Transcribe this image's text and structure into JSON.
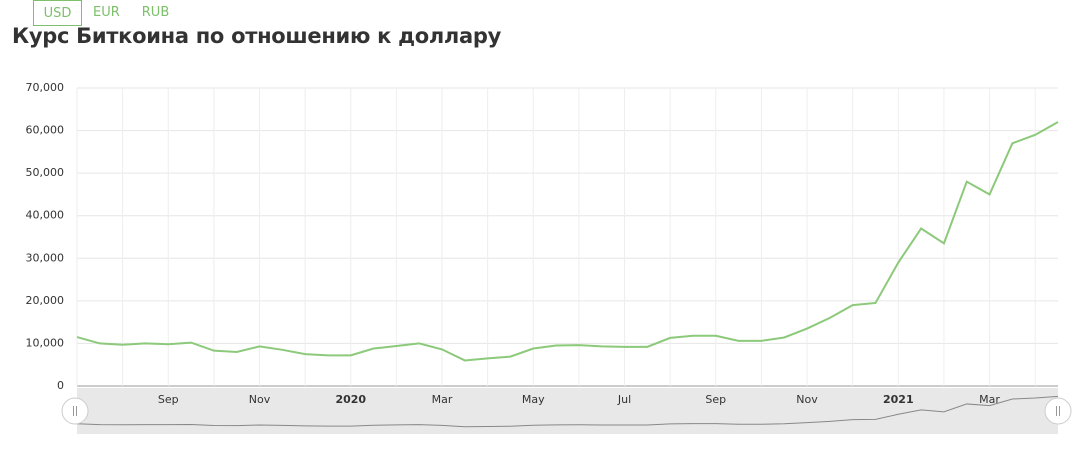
{
  "currency_tabs": [
    "USD",
    "EUR",
    "RUB"
  ],
  "chart_data": {
    "type": "line",
    "title": "Курс Биткоина по отношению к доллару",
    "categories": [
      null,
      null,
      null,
      null,
      "Sep",
      null,
      null,
      null,
      "Nov",
      null,
      null,
      null,
      "2020",
      null,
      null,
      null,
      "Mar",
      null,
      null,
      null,
      "May",
      null,
      null,
      null,
      "Jul",
      null,
      null,
      null,
      "Sep",
      null,
      null,
      null,
      "Nov",
      null,
      null,
      null,
      "2021",
      null,
      null,
      null,
      "Mar",
      null,
      null,
      null
    ],
    "series": [
      {
        "name": "USD",
        "color": "#8cc97a",
        "values": [
          11500,
          10000,
          9700,
          10000,
          9800,
          10200,
          8300,
          8000,
          9300,
          8500,
          7500,
          7200,
          7200,
          8800,
          9400,
          10000,
          8600,
          6000,
          6500,
          6900,
          8800,
          9500,
          9600,
          9300,
          9200,
          9200,
          11300,
          11800,
          11800,
          10600,
          10600,
          11400,
          13500,
          16000,
          19000,
          19500,
          29000,
          37000,
          33500,
          48000,
          45000,
          57000,
          59000,
          62000
        ]
      }
    ],
    "ylim": [
      0,
      70000
    ],
    "yticks": [
      0,
      {
        "value": 10000,
        "label": "10,000"
      },
      {
        "value": 20000,
        "label": "20,000"
      },
      {
        "value": 30000,
        "label": "30,000"
      },
      {
        "value": 40000,
        "label": "40,000"
      },
      {
        "value": 50000,
        "label": "50,000"
      },
      {
        "value": 60000,
        "label": "60,000"
      },
      {
        "value": 70000,
        "label": "70,000"
      }
    ],
    "grid": true
  }
}
